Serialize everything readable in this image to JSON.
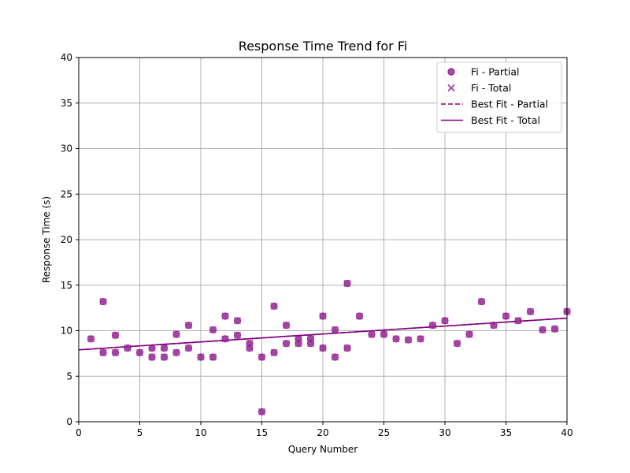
{
  "chart_data": {
    "type": "scatter",
    "title": "Response Time Trend for Fi",
    "xlabel": "Query Number",
    "ylabel": "Response Time (s)",
    "xlim": [
      0,
      40
    ],
    "ylim": [
      0,
      40
    ],
    "xticks": [
      "0",
      "5",
      "10",
      "15",
      "20",
      "25",
      "30",
      "35",
      "40"
    ],
    "yticks": [
      "0",
      "5",
      "10",
      "15",
      "20",
      "25",
      "30",
      "35",
      "40"
    ],
    "grid": true,
    "legend_position": "top-right",
    "color": "#800080",
    "series": [
      {
        "name": "Fi - Partial",
        "marker": "circle",
        "points": [
          [
            1,
            9.1
          ],
          [
            2,
            13.2
          ],
          [
            2,
            7.6
          ],
          [
            3,
            9.5
          ],
          [
            3,
            7.6
          ],
          [
            4,
            8.1
          ],
          [
            5,
            7.6
          ],
          [
            6,
            8.1
          ],
          [
            6,
            7.1
          ],
          [
            7,
            8.1
          ],
          [
            7,
            7.1
          ],
          [
            8,
            9.6
          ],
          [
            8,
            7.6
          ],
          [
            9,
            10.6
          ],
          [
            9,
            8.1
          ],
          [
            10,
            7.1
          ],
          [
            11,
            10.1
          ],
          [
            11,
            7.1
          ],
          [
            12,
            11.6
          ],
          [
            12,
            9.1
          ],
          [
            13,
            11.1
          ],
          [
            13,
            9.5
          ],
          [
            14,
            8.6
          ],
          [
            14,
            8.1
          ],
          [
            15,
            7.1
          ],
          [
            15,
            1.1
          ],
          [
            16,
            12.7
          ],
          [
            16,
            7.6
          ],
          [
            17,
            10.6
          ],
          [
            17,
            8.6
          ],
          [
            18,
            9.1
          ],
          [
            18,
            8.6
          ],
          [
            19,
            9.1
          ],
          [
            19,
            8.6
          ],
          [
            20,
            11.6
          ],
          [
            20,
            8.1
          ],
          [
            21,
            10.1
          ],
          [
            21,
            7.1
          ],
          [
            22,
            15.2
          ],
          [
            22,
            8.1
          ],
          [
            23,
            11.6
          ],
          [
            24,
            9.6
          ],
          [
            25,
            9.6
          ],
          [
            26,
            9.1
          ],
          [
            27,
            9.0
          ],
          [
            28,
            9.1
          ],
          [
            29,
            10.6
          ],
          [
            30,
            11.1
          ],
          [
            31,
            8.6
          ],
          [
            32,
            9.6
          ],
          [
            33,
            13.2
          ],
          [
            34,
            10.6
          ],
          [
            35,
            11.6
          ],
          [
            36,
            11.1
          ],
          [
            37,
            12.1
          ],
          [
            38,
            10.1
          ],
          [
            39,
            10.2
          ],
          [
            40,
            12.1
          ]
        ]
      },
      {
        "name": "Fi - Total",
        "marker": "x",
        "points": [
          [
            1,
            9.1
          ],
          [
            2,
            13.2
          ],
          [
            2,
            7.6
          ],
          [
            3,
            9.5
          ],
          [
            3,
            7.6
          ],
          [
            4,
            8.1
          ],
          [
            5,
            7.6
          ],
          [
            6,
            8.1
          ],
          [
            6,
            7.1
          ],
          [
            7,
            8.1
          ],
          [
            7,
            7.1
          ],
          [
            8,
            9.6
          ],
          [
            8,
            7.6
          ],
          [
            9,
            10.6
          ],
          [
            9,
            8.1
          ],
          [
            10,
            7.1
          ],
          [
            11,
            10.1
          ],
          [
            11,
            7.1
          ],
          [
            12,
            11.6
          ],
          [
            12,
            9.1
          ],
          [
            13,
            11.1
          ],
          [
            13,
            9.5
          ],
          [
            14,
            8.6
          ],
          [
            14,
            8.1
          ],
          [
            15,
            7.1
          ],
          [
            15,
            1.1
          ],
          [
            16,
            12.7
          ],
          [
            16,
            7.6
          ],
          [
            17,
            10.6
          ],
          [
            17,
            8.6
          ],
          [
            18,
            9.1
          ],
          [
            18,
            8.6
          ],
          [
            19,
            9.1
          ],
          [
            19,
            8.6
          ],
          [
            20,
            11.6
          ],
          [
            20,
            8.1
          ],
          [
            21,
            10.1
          ],
          [
            21,
            7.1
          ],
          [
            22,
            15.2
          ],
          [
            22,
            8.1
          ],
          [
            23,
            11.6
          ],
          [
            24,
            9.6
          ],
          [
            25,
            9.6
          ],
          [
            26,
            9.1
          ],
          [
            27,
            9.0
          ],
          [
            28,
            9.1
          ],
          [
            29,
            10.6
          ],
          [
            30,
            11.1
          ],
          [
            31,
            8.6
          ],
          [
            32,
            9.6
          ],
          [
            33,
            13.2
          ],
          [
            34,
            10.6
          ],
          [
            35,
            11.6
          ],
          [
            36,
            11.1
          ],
          [
            37,
            12.1
          ],
          [
            38,
            10.1
          ],
          [
            39,
            10.2
          ],
          [
            40,
            12.1
          ]
        ]
      },
      {
        "name": "Best Fit - Partial",
        "line_style": "dashed",
        "fit": {
          "intercept": 7.9,
          "slope": 0.087
        }
      },
      {
        "name": "Best Fit - Total",
        "line_style": "solid",
        "fit": {
          "intercept": 7.9,
          "slope": 0.087
        }
      }
    ]
  }
}
